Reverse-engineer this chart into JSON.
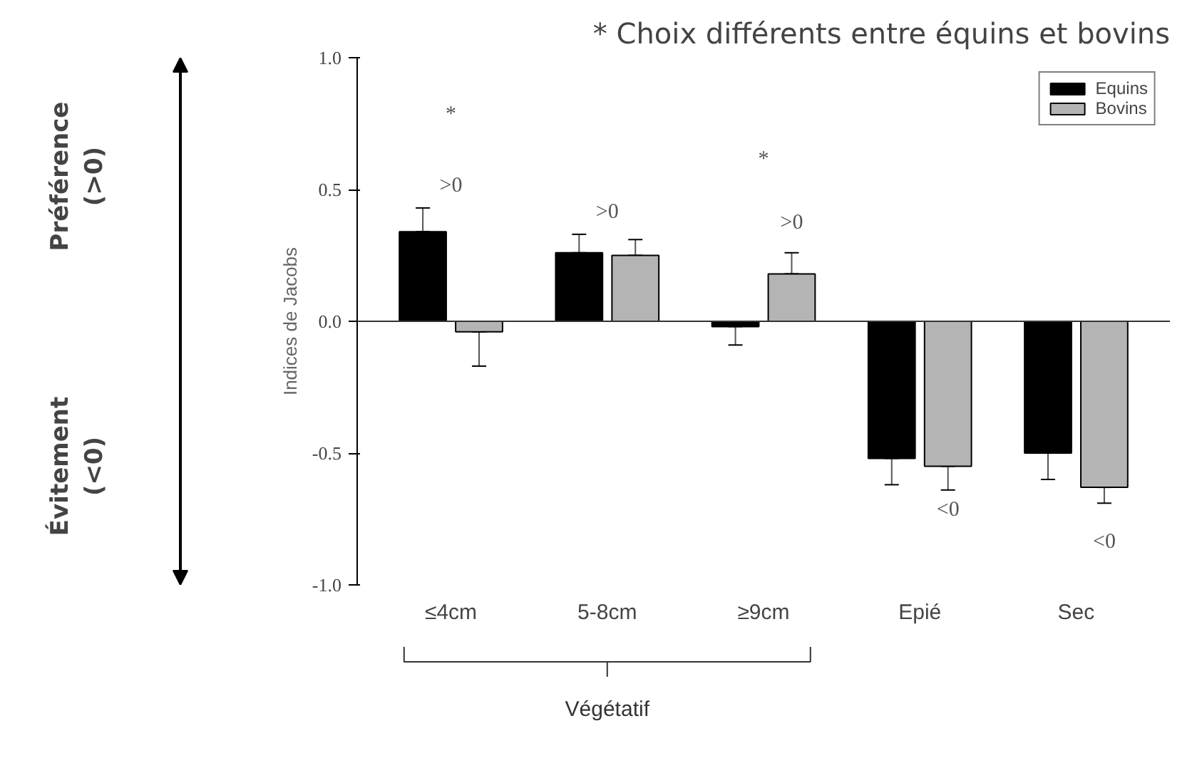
{
  "chart_data": {
    "type": "bar",
    "title": "* Choix différents entre équins et bovins",
    "ylabel": "Indices de Jacobs",
    "categories": [
      "≤4cm",
      "5-8cm",
      "≥9cm",
      "Epié",
      "Sec"
    ],
    "series": [
      {
        "name": "Equins",
        "color": "#000000",
        "values": [
          0.34,
          0.26,
          -0.02,
          -0.52,
          -0.5
        ],
        "errors": [
          [
            0.34,
            0.43
          ],
          [
            0.26,
            0.33
          ],
          [
            -0.09,
            -0.02
          ],
          [
            -0.62,
            -0.52
          ],
          [
            -0.6,
            -0.5
          ]
        ]
      },
      {
        "name": "Bovins",
        "color": "#b4b4b4",
        "values": [
          -0.04,
          0.25,
          0.18,
          -0.55,
          -0.63
        ],
        "errors": [
          [
            -0.17,
            -0.04
          ],
          [
            0.25,
            0.31
          ],
          [
            0.18,
            0.26
          ],
          [
            -0.64,
            -0.55
          ],
          [
            -0.69,
            -0.63
          ]
        ]
      }
    ],
    "ylim": [
      -1.0,
      1.0
    ],
    "yticks": [
      {
        "value": 1,
        "label": "1.0"
      },
      {
        "value": 0.5,
        "label": "0.5"
      },
      {
        "value": 0,
        "label": "0.0"
      },
      {
        "value": -0.5,
        "label": "-0.5"
      },
      {
        "value": -1,
        "label": "-1.0"
      }
    ],
    "ref_lines": [
      {
        "axis": "y",
        "value": 0
      }
    ],
    "legend": "top right",
    "grid": false,
    "annotations": [
      "*",
      ">0",
      ">0",
      "*",
      ">0",
      "<0",
      "<0",
      "Végétatif",
      "Préférence\n(>0)",
      "Évitement\n(<0)"
    ]
  }
}
